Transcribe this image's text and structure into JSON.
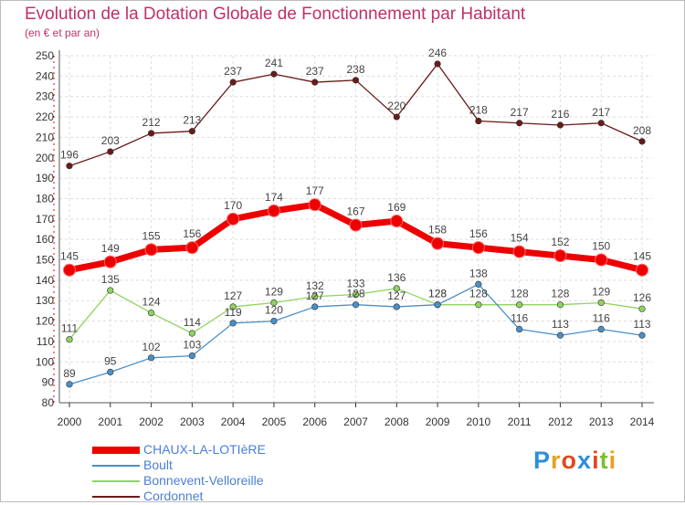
{
  "header": {
    "title": "Evolution de la Dotation Globale de Fonctionnement par Habitant",
    "subtitle": "(en € et par an)"
  },
  "logo": {
    "text": "Proxiti",
    "colors": [
      "#2f8fd8",
      "#e8a020",
      "#e04a20",
      "#2f8fd8",
      "#e04a20",
      "#7ac030",
      "#e8a020"
    ]
  },
  "chart_data": {
    "type": "line",
    "x": [
      2000,
      2001,
      2002,
      2003,
      2004,
      2005,
      2006,
      2007,
      2008,
      2009,
      2010,
      2011,
      2012,
      2013,
      2014
    ],
    "ylim": [
      80,
      250
    ],
    "yticks": [
      80,
      90,
      100,
      110,
      120,
      130,
      140,
      150,
      160,
      170,
      180,
      190,
      200,
      210,
      220,
      230,
      240,
      250
    ],
    "grid": true,
    "legend": "bottom-left",
    "series": [
      {
        "name": "Cordonnet",
        "color": "#6b1a1a",
        "values": [
          196,
          203,
          212,
          213,
          237,
          241,
          237,
          238,
          220,
          246,
          218,
          217,
          216,
          217,
          208
        ]
      },
      {
        "name": "Bonnevent-Velloreille",
        "color": "#8fd460",
        "values": [
          111,
          135,
          124,
          114,
          127,
          129,
          132,
          133,
          136,
          128,
          128,
          128,
          128,
          129,
          126
        ]
      },
      {
        "name": "Boult",
        "color": "#4a90c8",
        "values": [
          89,
          95,
          102,
          103,
          119,
          120,
          127,
          128,
          127,
          128,
          138,
          116,
          113,
          116,
          113
        ]
      },
      {
        "name": "CHAUX-LA-LOTIèRE",
        "color": "#ee0000",
        "values": [
          145,
          149,
          155,
          156,
          170,
          174,
          177,
          167,
          169,
          158,
          156,
          154,
          152,
          150,
          145
        ]
      }
    ],
    "legend_order": [
      "CHAUX-LA-LOTIèRE",
      "Boult",
      "Bonnevent-Velloreille",
      "Cordonnet"
    ]
  }
}
